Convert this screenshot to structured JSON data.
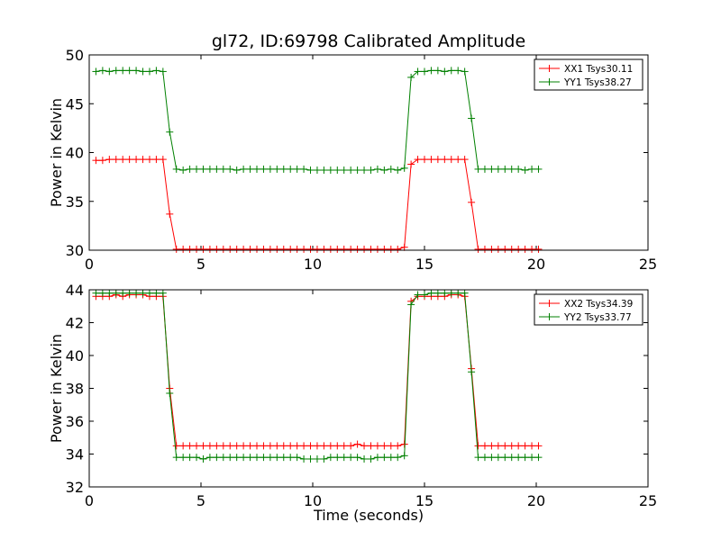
{
  "chart_data": [
    {
      "type": "line",
      "title": "gl72, ID:69798 Calibrated Amplitude",
      "xlabel": "",
      "ylabel": "Power in Kelvin",
      "xlim": [
        0,
        25
      ],
      "ylim": [
        30,
        50
      ],
      "xticks": [
        0,
        5,
        10,
        15,
        20,
        25
      ],
      "yticks": [
        30,
        35,
        40,
        45,
        50
      ],
      "grid": false,
      "legend": "top-right",
      "x": [
        0.3,
        0.6,
        0.9,
        1.2,
        1.5,
        1.8,
        2.1,
        2.4,
        2.7,
        3.0,
        3.3,
        3.6,
        3.9,
        4.2,
        4.5,
        4.8,
        5.1,
        5.4,
        5.7,
        6.0,
        6.3,
        6.6,
        6.9,
        7.2,
        7.5,
        7.8,
        8.1,
        8.4,
        8.7,
        9.0,
        9.3,
        9.6,
        9.9,
        10.2,
        10.5,
        10.8,
        11.1,
        11.4,
        11.7,
        12.0,
        12.3,
        12.6,
        12.9,
        13.2,
        13.5,
        13.8,
        14.1,
        14.4,
        14.7,
        15.0,
        15.3,
        15.6,
        15.9,
        16.2,
        16.5,
        16.8,
        17.1,
        17.4,
        17.7,
        18.0,
        18.3,
        18.6,
        18.9,
        19.2,
        19.5,
        19.8,
        20.1
      ],
      "series": [
        {
          "name": "XX1 Tsys30.11",
          "color": "#ff0000",
          "values": [
            39.2,
            39.2,
            39.3,
            39.3,
            39.3,
            39.3,
            39.3,
            39.3,
            39.3,
            39.3,
            39.3,
            33.7,
            30.1,
            30.1,
            30.1,
            30.1,
            30.1,
            30.1,
            30.1,
            30.1,
            30.1,
            30.1,
            30.1,
            30.1,
            30.1,
            30.1,
            30.1,
            30.1,
            30.1,
            30.1,
            30.1,
            30.1,
            30.1,
            30.1,
            30.1,
            30.1,
            30.1,
            30.1,
            30.1,
            30.1,
            30.1,
            30.1,
            30.1,
            30.1,
            30.1,
            30.1,
            30.3,
            38.8,
            39.3,
            39.3,
            39.3,
            39.3,
            39.3,
            39.3,
            39.3,
            39.3,
            34.9,
            30.1,
            30.1,
            30.1,
            30.1,
            30.1,
            30.1,
            30.1,
            30.1,
            30.1,
            30.1
          ]
        },
        {
          "name": "YY1 Tsys38.27",
          "color": "#008000",
          "values": [
            48.3,
            48.4,
            48.3,
            48.4,
            48.4,
            48.4,
            48.4,
            48.3,
            48.3,
            48.4,
            48.3,
            42.1,
            38.3,
            38.2,
            38.3,
            38.3,
            38.3,
            38.3,
            38.3,
            38.3,
            38.3,
            38.2,
            38.3,
            38.3,
            38.3,
            38.3,
            38.3,
            38.3,
            38.3,
            38.3,
            38.3,
            38.3,
            38.2,
            38.2,
            38.2,
            38.2,
            38.2,
            38.2,
            38.2,
            38.2,
            38.2,
            38.2,
            38.3,
            38.2,
            38.3,
            38.2,
            38.4,
            47.7,
            48.3,
            48.3,
            48.4,
            48.4,
            48.3,
            48.4,
            48.4,
            48.3,
            43.5,
            38.3,
            38.3,
            38.3,
            38.3,
            38.3,
            38.3,
            38.3,
            38.2,
            38.3,
            38.3
          ]
        }
      ]
    },
    {
      "type": "line",
      "title": "",
      "xlabel": "Time (seconds)",
      "ylabel": "Power in Kelvin",
      "xlim": [
        0,
        25
      ],
      "ylim": [
        32,
        44
      ],
      "xticks": [
        0,
        5,
        10,
        15,
        20,
        25
      ],
      "yticks": [
        32,
        34,
        36,
        38,
        40,
        42,
        44
      ],
      "grid": false,
      "legend": "top-right",
      "x": [
        0.3,
        0.6,
        0.9,
        1.2,
        1.5,
        1.8,
        2.1,
        2.4,
        2.7,
        3.0,
        3.3,
        3.6,
        3.9,
        4.2,
        4.5,
        4.8,
        5.1,
        5.4,
        5.7,
        6.0,
        6.3,
        6.6,
        6.9,
        7.2,
        7.5,
        7.8,
        8.1,
        8.4,
        8.7,
        9.0,
        9.3,
        9.6,
        9.9,
        10.2,
        10.5,
        10.8,
        11.1,
        11.4,
        11.7,
        12.0,
        12.3,
        12.6,
        12.9,
        13.2,
        13.5,
        13.8,
        14.1,
        14.4,
        14.7,
        15.0,
        15.3,
        15.6,
        15.9,
        16.2,
        16.5,
        16.8,
        17.1,
        17.4,
        17.7,
        18.0,
        18.3,
        18.6,
        18.9,
        19.2,
        19.5,
        19.8,
        20.1
      ],
      "series": [
        {
          "name": "XX2 Tsys34.39",
          "color": "#ff0000",
          "values": [
            43.6,
            43.6,
            43.6,
            43.7,
            43.6,
            43.7,
            43.7,
            43.7,
            43.6,
            43.6,
            43.6,
            38.0,
            34.5,
            34.5,
            34.5,
            34.5,
            34.5,
            34.5,
            34.5,
            34.5,
            34.5,
            34.5,
            34.5,
            34.5,
            34.5,
            34.5,
            34.5,
            34.5,
            34.5,
            34.5,
            34.5,
            34.5,
            34.5,
            34.5,
            34.5,
            34.5,
            34.5,
            34.5,
            34.5,
            34.6,
            34.5,
            34.5,
            34.5,
            34.5,
            34.5,
            34.5,
            34.6,
            43.3,
            43.6,
            43.6,
            43.6,
            43.6,
            43.6,
            43.7,
            43.7,
            43.6,
            39.2,
            34.5,
            34.5,
            34.5,
            34.5,
            34.5,
            34.5,
            34.5,
            34.5,
            34.5,
            34.5
          ]
        },
        {
          "name": "YY2 Tsys33.77",
          "color": "#008000",
          "values": [
            43.8,
            43.8,
            43.8,
            43.8,
            43.8,
            43.8,
            43.8,
            43.8,
            43.8,
            43.8,
            43.8,
            37.7,
            33.8,
            33.8,
            33.8,
            33.8,
            33.7,
            33.8,
            33.8,
            33.8,
            33.8,
            33.8,
            33.8,
            33.8,
            33.8,
            33.8,
            33.8,
            33.8,
            33.8,
            33.8,
            33.8,
            33.7,
            33.7,
            33.7,
            33.7,
            33.8,
            33.8,
            33.8,
            33.8,
            33.8,
            33.7,
            33.7,
            33.8,
            33.8,
            33.8,
            33.8,
            33.9,
            43.1,
            43.7,
            43.7,
            43.8,
            43.8,
            43.8,
            43.8,
            43.8,
            43.8,
            39.0,
            33.8,
            33.8,
            33.8,
            33.8,
            33.8,
            33.8,
            33.8,
            33.8,
            33.8,
            33.8
          ]
        }
      ]
    }
  ]
}
